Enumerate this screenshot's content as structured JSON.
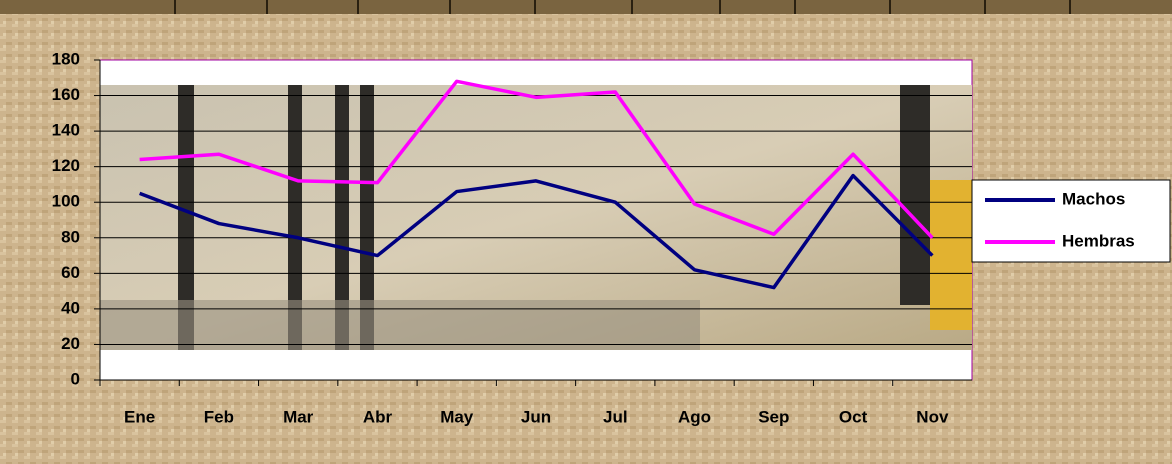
{
  "chart_data": {
    "type": "line",
    "categories": [
      "Ene",
      "Feb",
      "Mar",
      "Abr",
      "May",
      "Jun",
      "Jul",
      "Ago",
      "Sep",
      "Oct",
      "Nov"
    ],
    "series": [
      {
        "name": "Machos",
        "color": "#000080",
        "values": [
          105,
          88,
          80,
          70,
          106,
          112,
          100,
          62,
          52,
          115,
          70
        ]
      },
      {
        "name": "Hembras",
        "color": "#ff00ff",
        "values": [
          124,
          127,
          112,
          111,
          168,
          159,
          162,
          99,
          82,
          127,
          80
        ]
      }
    ],
    "ylim": [
      0,
      180
    ],
    "yticks": [
      0,
      20,
      40,
      60,
      80,
      100,
      120,
      140,
      160,
      180
    ],
    "grid": true,
    "legend": "right"
  }
}
